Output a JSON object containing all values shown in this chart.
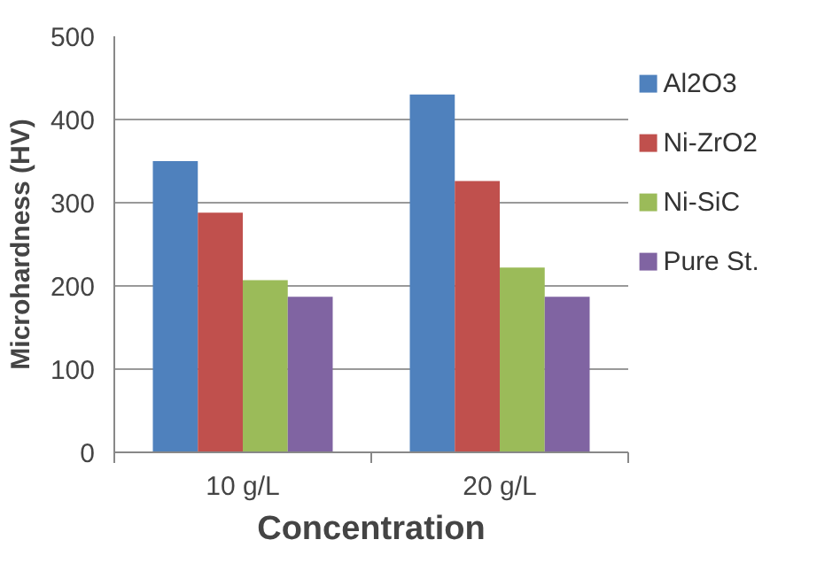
{
  "chart_data": {
    "type": "bar",
    "xlabel": "Concentration",
    "ylabel": "Microhardness (HV)",
    "categories": [
      "10 g/L",
      "20 g/L"
    ],
    "series": [
      {
        "name": "Al2O3",
        "color": "#4f81bd",
        "values": [
          350,
          430
        ]
      },
      {
        "name": "Ni-ZrO2",
        "color": "#c0504d",
        "values": [
          288,
          326
        ]
      },
      {
        "name": "Ni-SiC",
        "color": "#9bbb59",
        "values": [
          207,
          222
        ]
      },
      {
        "name": "Pure St.",
        "color": "#8064a2",
        "values": [
          187,
          187
        ]
      }
    ],
    "ylim": [
      0,
      500
    ],
    "yticks": [
      0,
      100,
      200,
      300,
      400,
      500
    ],
    "grid": "y",
    "legend": "right"
  }
}
